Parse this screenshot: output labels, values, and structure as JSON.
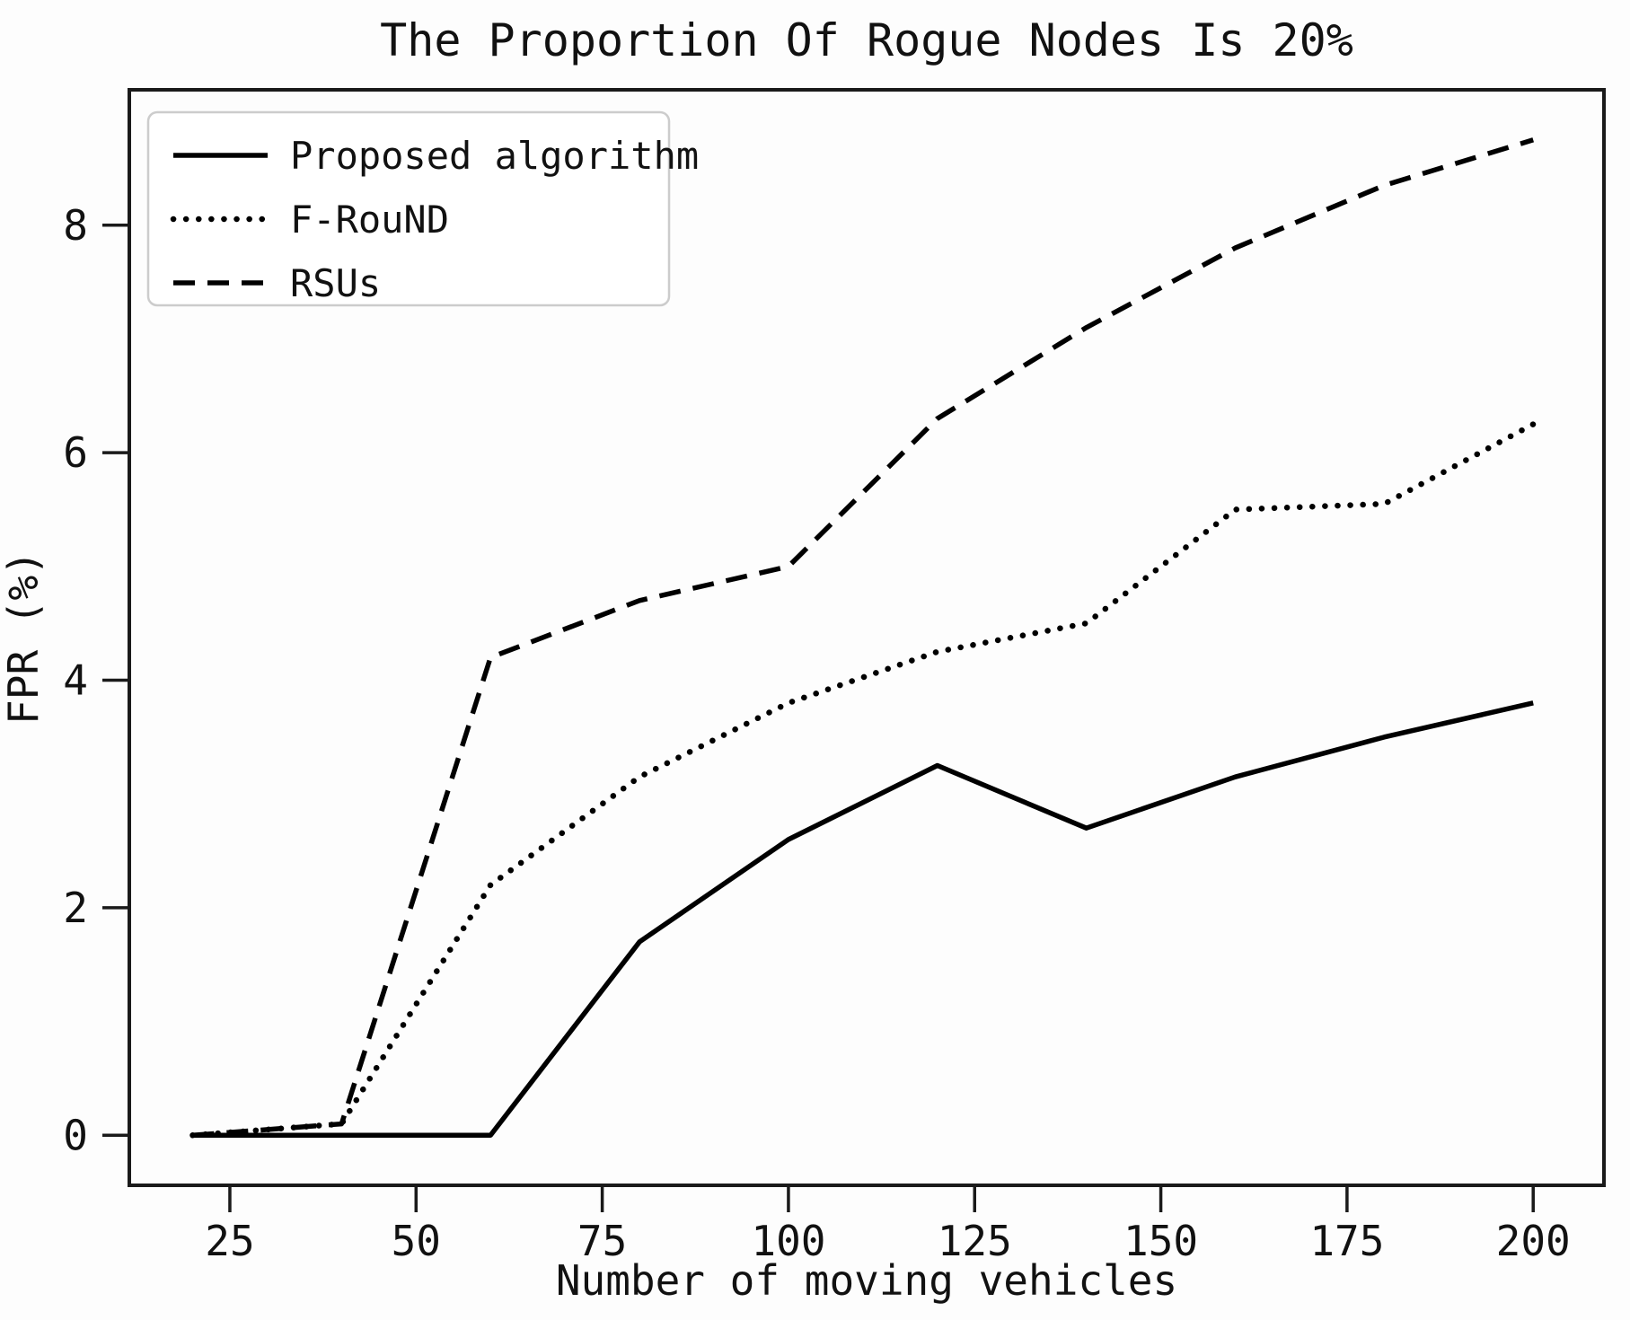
{
  "title": "The Proportion Of Rogue Nodes Is 20%",
  "chart_data": {
    "type": "line",
    "title": "The Proportion Of Rogue Nodes Is 20%",
    "xlabel": "Number of moving vehicles",
    "ylabel": "FPR (%)",
    "x": [
      20,
      40,
      60,
      80,
      100,
      120,
      140,
      160,
      180,
      200
    ],
    "series": [
      {
        "name": "Proposed algorithm",
        "style": "solid",
        "values": [
          0,
          0,
          0,
          1.7,
          2.6,
          3.25,
          2.7,
          3.15,
          3.5,
          3.8
        ]
      },
      {
        "name": "F-RouND",
        "style": "dotted",
        "values": [
          0,
          0.1,
          2.2,
          3.15,
          3.8,
          4.25,
          4.5,
          5.5,
          5.55,
          6.25
        ]
      },
      {
        "name": "RSUs",
        "style": "dashed",
        "values": [
          0,
          0.1,
          4.2,
          4.7,
          5.0,
          6.3,
          7.1,
          7.8,
          8.35,
          8.75
        ]
      }
    ],
    "xticks": [
      25,
      50,
      75,
      100,
      125,
      150,
      175,
      200
    ],
    "yticks": [
      0,
      2,
      4,
      6,
      8
    ],
    "xlim": [
      11.5,
      209.5
    ],
    "ylim": [
      -0.44,
      9.19
    ],
    "grid": false,
    "legend_position": "upper left",
    "line_color": "#000000",
    "spine_color": "#1a1a1a",
    "legend_border_color": "#cccccc"
  }
}
